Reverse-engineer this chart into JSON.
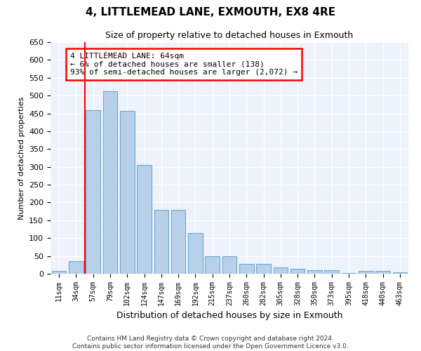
{
  "title": "4, LITTLEMEAD LANE, EXMOUTH, EX8 4RE",
  "subtitle": "Size of property relative to detached houses in Exmouth",
  "xlabel": "Distribution of detached houses by size in Exmouth",
  "ylabel": "Number of detached properties",
  "categories": [
    "11sqm",
    "34sqm",
    "57sqm",
    "79sqm",
    "102sqm",
    "124sqm",
    "147sqm",
    "169sqm",
    "192sqm",
    "215sqm",
    "237sqm",
    "260sqm",
    "282sqm",
    "305sqm",
    "328sqm",
    "350sqm",
    "373sqm",
    "395sqm",
    "418sqm",
    "440sqm",
    "463sqm"
  ],
  "values": [
    8,
    35,
    458,
    512,
    456,
    305,
    180,
    180,
    115,
    50,
    50,
    27,
    27,
    18,
    13,
    9,
    9,
    2,
    8,
    8,
    4
  ],
  "bar_color": "#b8d0ea",
  "bar_edge_color": "#6aaad4",
  "background_color": "#edf2fb",
  "vline_color": "red",
  "vline_x": 1.5,
  "annotation_text": "4 LITTLEMEAD LANE: 64sqm\n← 6% of detached houses are smaller (138)\n93% of semi-detached houses are larger (2,072) →",
  "annotation_box_color": "white",
  "annotation_box_edge": "red",
  "ylim": [
    0,
    650
  ],
  "yticks": [
    0,
    50,
    100,
    150,
    200,
    250,
    300,
    350,
    400,
    450,
    500,
    550,
    600,
    650
  ],
  "footer1": "Contains HM Land Registry data © Crown copyright and database right 2024.",
  "footer2": "Contains public sector information licensed under the Open Government Licence v3.0.",
  "title_fontsize": 11,
  "subtitle_fontsize": 9,
  "ylabel_fontsize": 8,
  "xlabel_fontsize": 9,
  "tick_fontsize": 7,
  "annot_fontsize": 8
}
